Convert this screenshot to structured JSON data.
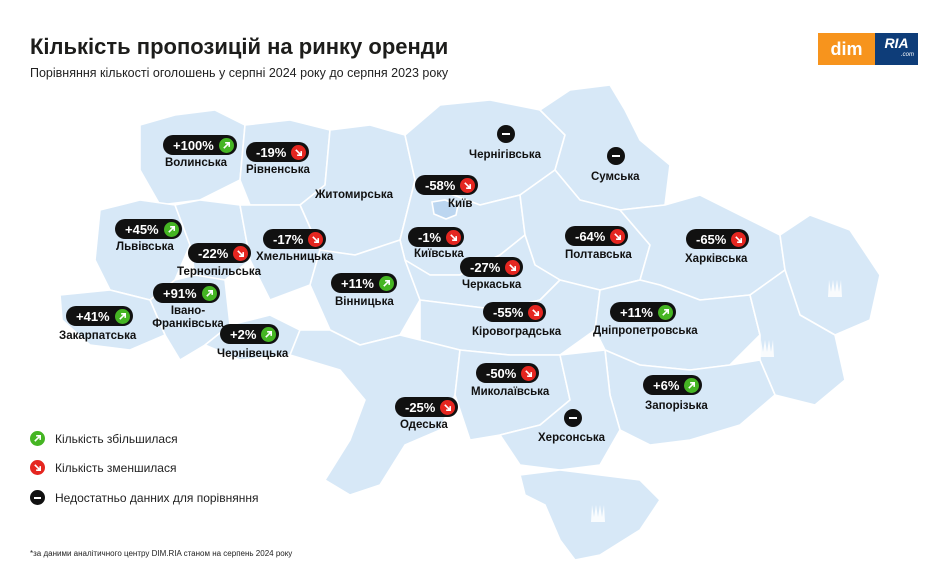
{
  "title": "Кількість пропозицій на ринку оренди",
  "subtitle": "Порівняння кількості оголошень у серпні 2024 року до серпня 2023 року",
  "logo": {
    "dim": "dim",
    "ria": "RIA",
    "ria_sub": ".com"
  },
  "colors": {
    "map_fill": "#d7e8f7",
    "map_stroke": "#ffffff",
    "increase": "#45b523",
    "decrease": "#e52620",
    "no_data": "#111111",
    "logo_orange": "#f7941d",
    "logo_blue": "#0e3d79"
  },
  "regions": [
    {
      "id": "volynska",
      "name": "Волинська",
      "value": "+100%",
      "trend": "up"
    },
    {
      "id": "rivnenska",
      "name": "Рівненська",
      "value": "-19%",
      "trend": "down"
    },
    {
      "id": "zhytomyrska",
      "name": "Житомирська",
      "value": "",
      "trend": "none"
    },
    {
      "id": "chernihivska",
      "name": "Чернігівська",
      "value": "",
      "trend": "nodata"
    },
    {
      "id": "sumska",
      "name": "Сумська",
      "value": "",
      "trend": "nodata"
    },
    {
      "id": "kyiv",
      "name": "Київ",
      "value": "-58%",
      "trend": "down"
    },
    {
      "id": "lvivska",
      "name": "Львівська",
      "value": "+45%",
      "trend": "up"
    },
    {
      "id": "ternopilska",
      "name": "Тернопільська",
      "value": "-22%",
      "trend": "down"
    },
    {
      "id": "khmelnytska",
      "name": "Хмельницька",
      "value": "-17%",
      "trend": "down"
    },
    {
      "id": "kyivska",
      "name": "Київська",
      "value": "-1%",
      "trend": "down"
    },
    {
      "id": "poltavska",
      "name": "Полтавська",
      "value": "-64%",
      "trend": "down"
    },
    {
      "id": "kharkivska",
      "name": "Харківська",
      "value": "-65%",
      "trend": "down"
    },
    {
      "id": "cherkaska",
      "name": "Черкаська",
      "value": "-27%",
      "trend": "down"
    },
    {
      "id": "vinnytska",
      "name": "Вінницька",
      "value": "+11%",
      "trend": "up"
    },
    {
      "id": "ivano_frankivska",
      "name": "Івано-\nФранківська",
      "value": "+91%",
      "trend": "up"
    },
    {
      "id": "zakarpatska",
      "name": "Закарпатська",
      "value": "+41%",
      "trend": "up"
    },
    {
      "id": "kirovohradska",
      "name": "Кіровоградська",
      "value": "-55%",
      "trend": "down"
    },
    {
      "id": "dnipropetrovska",
      "name": "Дніпропетровська",
      "value": "+11%",
      "trend": "up"
    },
    {
      "id": "chernivetska",
      "name": "Чернівецька",
      "value": "+2%",
      "trend": "up"
    },
    {
      "id": "mykolaivska",
      "name": "Миколаївська",
      "value": "-50%",
      "trend": "down"
    },
    {
      "id": "zaporizka",
      "name": "Запорізька",
      "value": "+6%",
      "trend": "up"
    },
    {
      "id": "odeska",
      "name": "Одеська",
      "value": "-25%",
      "trend": "down"
    },
    {
      "id": "khersonska",
      "name": "Херсонська",
      "value": "",
      "trend": "nodata"
    }
  ],
  "legend": [
    {
      "label": "Кількість збільшилася",
      "type": "up"
    },
    {
      "label": "Кількість зменшилася",
      "type": "down"
    },
    {
      "label": "Недостатньо данних для порівняння",
      "type": "nodata"
    }
  ],
  "footnote": "*за даними аналітичного центру DIM.RIA станом на серпень 2024 року"
}
